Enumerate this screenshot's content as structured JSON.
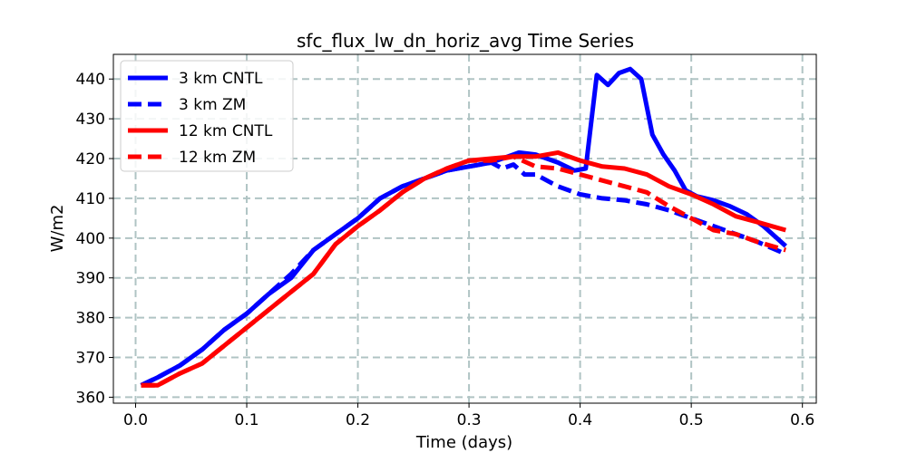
{
  "chart_data": {
    "type": "line",
    "title": "sfc_flux_lw_dn_horiz_avg Time Series",
    "xlabel": "Time (days)",
    "ylabel": "W/m2",
    "xlim": [
      -0.02,
      0.6125
    ],
    "ylim": [
      358.5,
      446.2
    ],
    "xticks": [
      0.0,
      0.1,
      0.2,
      0.3,
      0.4,
      0.5,
      0.6
    ],
    "xtick_labels": [
      "0.0",
      "0.1",
      "0.2",
      "0.3",
      "0.4",
      "0.5",
      "0.6"
    ],
    "yticks": [
      360,
      370,
      380,
      390,
      400,
      410,
      420,
      430,
      440
    ],
    "ytick_labels": [
      "360",
      "370",
      "380",
      "390",
      "400",
      "410",
      "420",
      "430",
      "440"
    ],
    "grid": true,
    "legend_position": "top-left",
    "series": [
      {
        "name": "3 km CNTL",
        "color": "#0000ff",
        "dash": "solid",
        "x": [
          0.005,
          0.02,
          0.04,
          0.06,
          0.08,
          0.1,
          0.12,
          0.14,
          0.16,
          0.18,
          0.2,
          0.22,
          0.24,
          0.26,
          0.28,
          0.3,
          0.32,
          0.34,
          0.345,
          0.36,
          0.38,
          0.395,
          0.405,
          0.415,
          0.425,
          0.435,
          0.445,
          0.455,
          0.465,
          0.475,
          0.485,
          0.495,
          0.505,
          0.52,
          0.535,
          0.55,
          0.565,
          0.585
        ],
        "y": [
          363,
          365,
          368,
          372,
          377,
          381,
          386,
          390,
          397,
          401,
          405,
          410,
          413,
          415,
          417,
          418,
          419,
          421,
          421.5,
          421,
          419,
          417,
          417.5,
          441,
          438.5,
          441.5,
          442.5,
          440,
          426,
          421,
          417,
          412,
          410.5,
          409.5,
          408,
          406,
          403,
          398
        ]
      },
      {
        "name": "3 km ZM",
        "color": "#0000ff",
        "dash": "dashed",
        "x": [
          0.005,
          0.02,
          0.04,
          0.06,
          0.08,
          0.1,
          0.12,
          0.14,
          0.16,
          0.18,
          0.2,
          0.22,
          0.24,
          0.26,
          0.28,
          0.3,
          0.32,
          0.33,
          0.34,
          0.35,
          0.36,
          0.38,
          0.4,
          0.42,
          0.44,
          0.46,
          0.48,
          0.5,
          0.52,
          0.54,
          0.56,
          0.585
        ],
        "y": [
          363,
          365,
          368,
          372,
          377,
          381,
          386,
          391,
          397,
          401,
          405,
          410,
          413,
          415,
          417,
          418,
          419,
          417.5,
          418.5,
          416,
          416,
          413,
          411,
          410,
          409.5,
          408.5,
          407,
          405,
          403,
          401,
          399,
          396
        ]
      },
      {
        "name": "12 km CNTL",
        "color": "#ff0000",
        "dash": "solid",
        "x": [
          0.005,
          0.02,
          0.04,
          0.06,
          0.08,
          0.1,
          0.12,
          0.14,
          0.16,
          0.18,
          0.2,
          0.22,
          0.24,
          0.26,
          0.28,
          0.3,
          0.32,
          0.34,
          0.36,
          0.38,
          0.4,
          0.42,
          0.44,
          0.46,
          0.48,
          0.5,
          0.52,
          0.54,
          0.56,
          0.585
        ],
        "y": [
          363,
          363,
          366,
          368.5,
          373,
          377.5,
          382,
          386.5,
          391,
          398.5,
          403,
          407,
          411.5,
          415,
          417.5,
          419.5,
          420,
          420.5,
          420.5,
          421.5,
          419.5,
          418,
          417.5,
          416,
          413,
          411,
          408.5,
          405.5,
          404,
          402
        ]
      },
      {
        "name": "12 km ZM",
        "color": "#ff0000",
        "dash": "dashed",
        "x": [
          0.005,
          0.02,
          0.04,
          0.06,
          0.08,
          0.1,
          0.12,
          0.14,
          0.16,
          0.18,
          0.2,
          0.22,
          0.24,
          0.26,
          0.28,
          0.3,
          0.32,
          0.34,
          0.36,
          0.38,
          0.4,
          0.42,
          0.44,
          0.46,
          0.48,
          0.5,
          0.52,
          0.54,
          0.56,
          0.585
        ],
        "y": [
          363,
          363,
          366,
          368.5,
          373,
          377.5,
          382,
          386.5,
          391,
          398.5,
          403,
          407,
          411.5,
          415,
          417.5,
          419.5,
          419.5,
          420.5,
          418,
          417.5,
          416,
          414.5,
          413,
          411.5,
          408,
          405,
          402,
          401,
          399,
          397
        ]
      }
    ]
  }
}
